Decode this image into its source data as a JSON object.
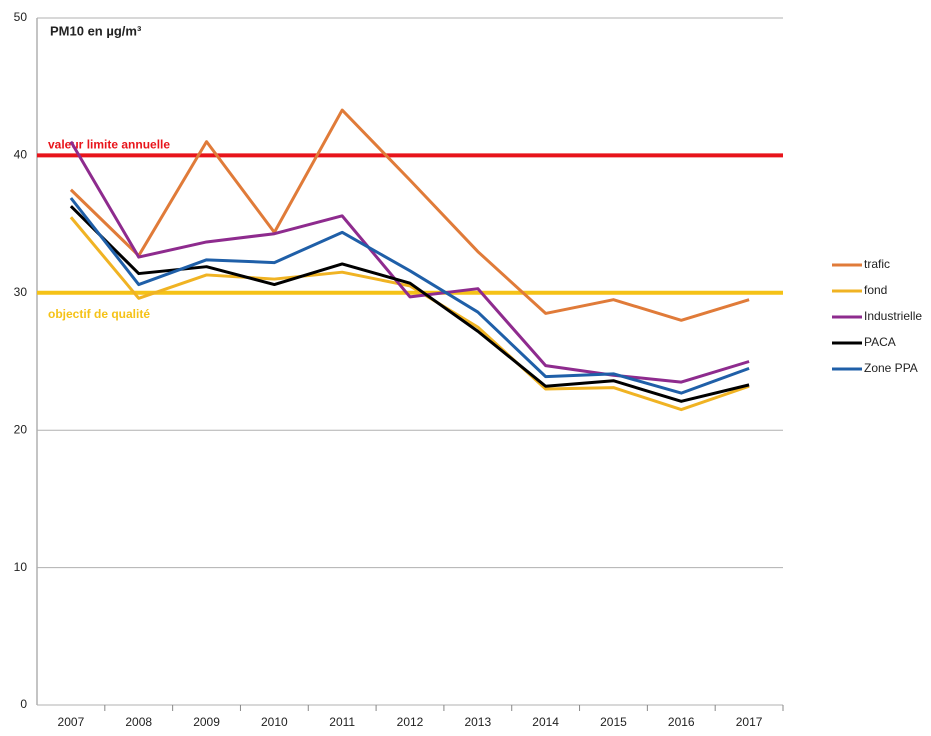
{
  "chart_data": {
    "type": "line",
    "title": "PM10 en µg/m³",
    "categories": [
      "2007",
      "2008",
      "2009",
      "2010",
      "2011",
      "2012",
      "2013",
      "2014",
      "2015",
      "2016",
      "2017"
    ],
    "series": [
      {
        "name": "trafic",
        "color": "#e07b39",
        "values": [
          37.5,
          32.7,
          41.0,
          34.4,
          43.3,
          38.2,
          33.0,
          28.5,
          29.5,
          28.0,
          29.5
        ]
      },
      {
        "name": "fond",
        "color": "#f0b323",
        "values": [
          35.5,
          29.6,
          31.3,
          31.0,
          31.5,
          30.5,
          27.5,
          23.0,
          23.1,
          21.5,
          23.2
        ]
      },
      {
        "name": "Industrielle",
        "color": "#8e2b8e",
        "values": [
          41.0,
          32.6,
          33.7,
          34.3,
          35.6,
          29.7,
          30.3,
          24.7,
          24.0,
          23.5,
          25.0
        ]
      },
      {
        "name": "PACA",
        "color": "#000000",
        "values": [
          36.3,
          31.4,
          31.9,
          30.6,
          32.1,
          30.7,
          27.2,
          23.2,
          23.6,
          22.1,
          23.3
        ]
      },
      {
        "name": "Zone PPA",
        "color": "#1f5fa8",
        "values": [
          36.9,
          30.6,
          32.4,
          32.2,
          34.4,
          31.6,
          28.6,
          23.9,
          24.1,
          22.7,
          24.5
        ]
      }
    ],
    "reference_lines": [
      {
        "value": 40,
        "label": "valeur limite annuelle",
        "color": "#e8141b"
      },
      {
        "value": 30,
        "label": "objectif de qualité",
        "color": "#f5c217"
      }
    ],
    "ylim": [
      0,
      50
    ],
    "yticks": [
      0,
      10,
      20,
      30,
      40,
      50
    ],
    "grid": true,
    "legend": "right"
  }
}
